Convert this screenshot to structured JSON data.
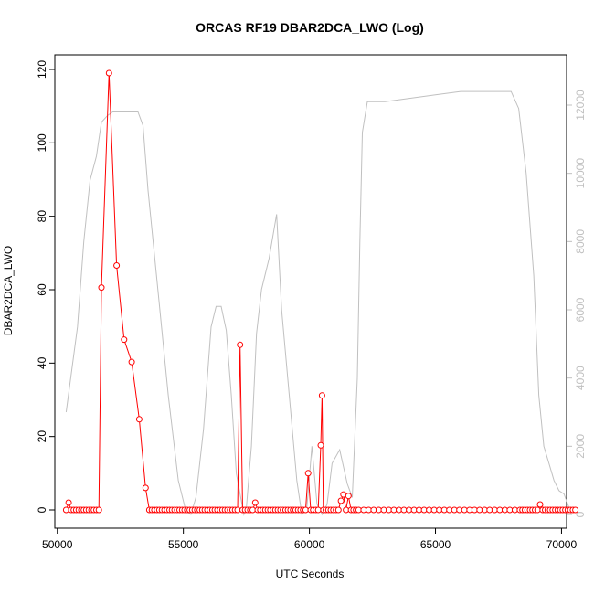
{
  "chart_data": {
    "type": "line",
    "title": "ORCAS RF19 DBAR2DCA_LWO (Log)",
    "xlabel": "UTC Seconds",
    "ylabel": "DBAR2DCA_LWO",
    "xlim": [
      50300,
      70600
    ],
    "ylim": [
      0,
      120
    ],
    "y2lim": [
      0,
      12500
    ],
    "xticks": [
      50000,
      55000,
      60000,
      65000,
      70000
    ],
    "yticks": [
      0,
      20,
      40,
      60,
      80,
      100,
      120
    ],
    "y2ticks": [
      0,
      2000,
      4000,
      6000,
      8000,
      10000,
      12000
    ],
    "grid": false,
    "colors": {
      "primary": "#ff0000",
      "secondary": "#c0c0c0",
      "axis": "#000000"
    },
    "series": [
      {
        "axis": "left",
        "style": "line+points",
        "x": [
          50350,
          50450,
          50550,
          50650,
          50750,
          50850,
          50950,
          51050,
          51150,
          51250,
          51350,
          51450,
          51550,
          51650,
          51750,
          52050,
          52350,
          52650,
          52950,
          53250,
          53500,
          53650,
          53750,
          53850,
          53950,
          54050,
          54150,
          54250,
          54350,
          54450,
          54550,
          54650,
          54750,
          54850,
          54950,
          55050,
          55150,
          55250,
          55350,
          55450,
          55550,
          55650,
          55750,
          55850,
          55950,
          56050,
          56150,
          56250,
          56350,
          56450,
          56550,
          56650,
          56750,
          56850,
          56950,
          57050,
          57150,
          57250,
          57350,
          57450,
          57550,
          57650,
          57750,
          57850,
          57950,
          58050,
          58150,
          58250,
          58350,
          58450,
          58550,
          58650,
          58750,
          58850,
          58950,
          59050,
          59150,
          59250,
          59350,
          59450,
          59550,
          59650,
          59750,
          59850,
          59950,
          60050,
          60150,
          60250,
          60350,
          60450,
          60500,
          60550,
          60650,
          60750,
          60850,
          60950,
          61050,
          61150,
          61250,
          61350,
          61450,
          61550,
          61650,
          61750,
          61850,
          61950,
          62150,
          62350,
          62550,
          62750,
          62950,
          63150,
          63350,
          63550,
          63750,
          63950,
          64150,
          64350,
          64550,
          64750,
          64950,
          65150,
          65350,
          65550,
          65750,
          65950,
          66150,
          66350,
          66550,
          66750,
          66950,
          67150,
          67350,
          67550,
          67750,
          67950,
          68150,
          68350,
          68450,
          68550,
          68650,
          68750,
          68850,
          68950,
          69050,
          69150,
          69250,
          69350,
          69450,
          69550,
          69650,
          69750,
          69850,
          69950,
          70050,
          70150,
          70250,
          70350,
          70450,
          70550
        ],
        "y": [
          0,
          2,
          0,
          0,
          0,
          0,
          0,
          0,
          0,
          0,
          0,
          0,
          0,
          0,
          60.6,
          119,
          66.6,
          46.4,
          40.3,
          24.7,
          6,
          0,
          0,
          0,
          0,
          0,
          0,
          0,
          0,
          0,
          0,
          0,
          0,
          0,
          0,
          0,
          0,
          0,
          0,
          0,
          0,
          0,
          0,
          0,
          0,
          0,
          0,
          0,
          0,
          0,
          0,
          0,
          0,
          0,
          0,
          0,
          0,
          45,
          0,
          0,
          0,
          0,
          0,
          2,
          0,
          0,
          0,
          0,
          0,
          0,
          0,
          0,
          0,
          0,
          0,
          0,
          0,
          0,
          0,
          0,
          0,
          0,
          0,
          0,
          10,
          0,
          0,
          0,
          0,
          17.6,
          31.2,
          0,
          0,
          0,
          0,
          0,
          0,
          0,
          2.5,
          4.2,
          0,
          3.8,
          0,
          0,
          0,
          0,
          0,
          0,
          0,
          0,
          0,
          0,
          0,
          0,
          0,
          0,
          0,
          0,
          0,
          0,
          0,
          0,
          0,
          0,
          0,
          0,
          0,
          0,
          0,
          0,
          0,
          0,
          0,
          0,
          0,
          0,
          0,
          0,
          0,
          0,
          0,
          0,
          0,
          0,
          0,
          1.5,
          0,
          0,
          0,
          0,
          0,
          0,
          0,
          0,
          0,
          0,
          0,
          0,
          0,
          0
        ]
      },
      {
        "axis": "right",
        "style": "line",
        "x": [
          50350,
          50800,
          51050,
          51300,
          51550,
          51750,
          52000,
          52200,
          53200,
          53400,
          53600,
          54000,
          54400,
          54800,
          55100,
          55300,
          55500,
          55800,
          56100,
          56300,
          56500,
          56700,
          56900,
          57100,
          57300,
          57400,
          57500,
          57700,
          57900,
          58100,
          58400,
          58700,
          58900,
          59200,
          59500,
          59700,
          59900,
          60100,
          60300,
          60500,
          60700,
          60900,
          61200,
          61500,
          61700,
          61900,
          62000,
          62100,
          62300,
          63000,
          64000,
          65000,
          66000,
          67000,
          67500,
          68000,
          68300,
          68600,
          68900,
          69100,
          69300,
          69500,
          69700,
          69900,
          70100,
          70200,
          70300,
          70400
        ],
        "y": [
          3000,
          5500,
          8000,
          9800,
          10500,
          11500,
          11700,
          11800,
          11800,
          11400,
          9500,
          6500,
          3500,
          1000,
          100,
          0,
          500,
          2500,
          5500,
          6100,
          6100,
          5400,
          3500,
          1200,
          400,
          0,
          200,
          2000,
          5300,
          6600,
          7500,
          8800,
          6000,
          3500,
          1000,
          0,
          200,
          2000,
          300,
          0,
          300,
          1500,
          1900,
          900,
          500,
          4000,
          8000,
          11200,
          12100,
          12100,
          12200,
          12300,
          12400,
          12400,
          12400,
          12400,
          11900,
          10000,
          7000,
          3500,
          2000,
          1500,
          1000,
          700,
          600,
          400,
          200,
          0
        ]
      }
    ]
  }
}
